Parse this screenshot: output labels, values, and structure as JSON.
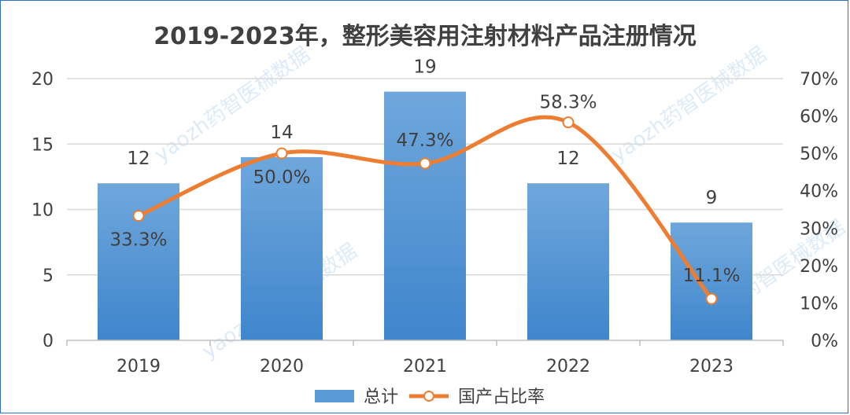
{
  "chart_data": {
    "type": "bar",
    "title": "2019-2023年，整形美容用注射材料产品注册情况",
    "categories": [
      "2019",
      "2020",
      "2021",
      "2022",
      "2023"
    ],
    "series": [
      {
        "name": "总计",
        "type": "bar",
        "axis": "left",
        "values": [
          12,
          14,
          19,
          12,
          9
        ],
        "labels": [
          "12",
          "14",
          "19",
          "12",
          "9"
        ],
        "color": "#5b9bd5"
      },
      {
        "name": "国产占比率",
        "type": "line",
        "axis": "right",
        "smooth": true,
        "values": [
          33.3,
          50.0,
          47.3,
          58.3,
          11.1
        ],
        "labels": [
          "33.3%",
          "50.0%",
          "47.3%",
          "58.3%",
          "11.1%"
        ],
        "color": "#ed7d31"
      }
    ],
    "y_left": {
      "min": 0,
      "max": 20,
      "ticks": [
        "0",
        "5",
        "10",
        "15",
        "20"
      ],
      "tick_values": [
        0,
        5,
        10,
        15,
        20
      ]
    },
    "y_right": {
      "min": 0,
      "max": 70,
      "ticks": [
        "0%",
        "10%",
        "20%",
        "30%",
        "40%",
        "50%",
        "60%",
        "70%"
      ],
      "tick_values": [
        0,
        10,
        20,
        30,
        40,
        50,
        60,
        70
      ]
    },
    "grid": true,
    "legend": "bottom"
  },
  "watermark": "yaozh药智医械数据"
}
